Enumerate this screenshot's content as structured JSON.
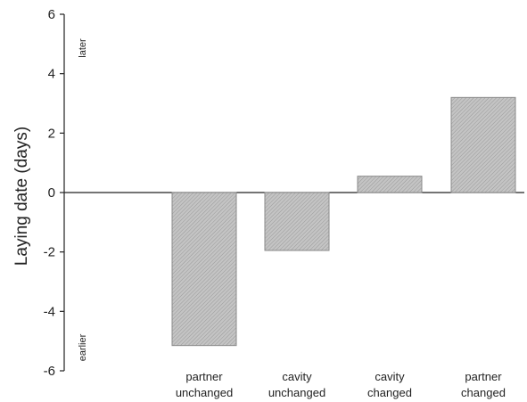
{
  "chart_data": {
    "type": "bar",
    "categories": [
      [
        "partner",
        "unchanged"
      ],
      [
        "cavity",
        "unchanged"
      ],
      [
        "cavity",
        "changed"
      ],
      [
        "partner",
        "changed"
      ]
    ],
    "values": [
      -5.15,
      -1.95,
      0.55,
      3.2
    ],
    "ylabel": "Laying date   (days)",
    "xlabel": "",
    "title": "",
    "ylim": [
      -6,
      6
    ],
    "yticks": [
      -6,
      -4,
      -2,
      0,
      2,
      4,
      6
    ],
    "annotations": {
      "top": "later",
      "bottom": "earlier"
    },
    "grid": false,
    "legend": "none",
    "colors": {
      "bar_fill": "#b8b8b8",
      "bar_hatch": "#8f8f8f",
      "axis": "#222222"
    }
  }
}
